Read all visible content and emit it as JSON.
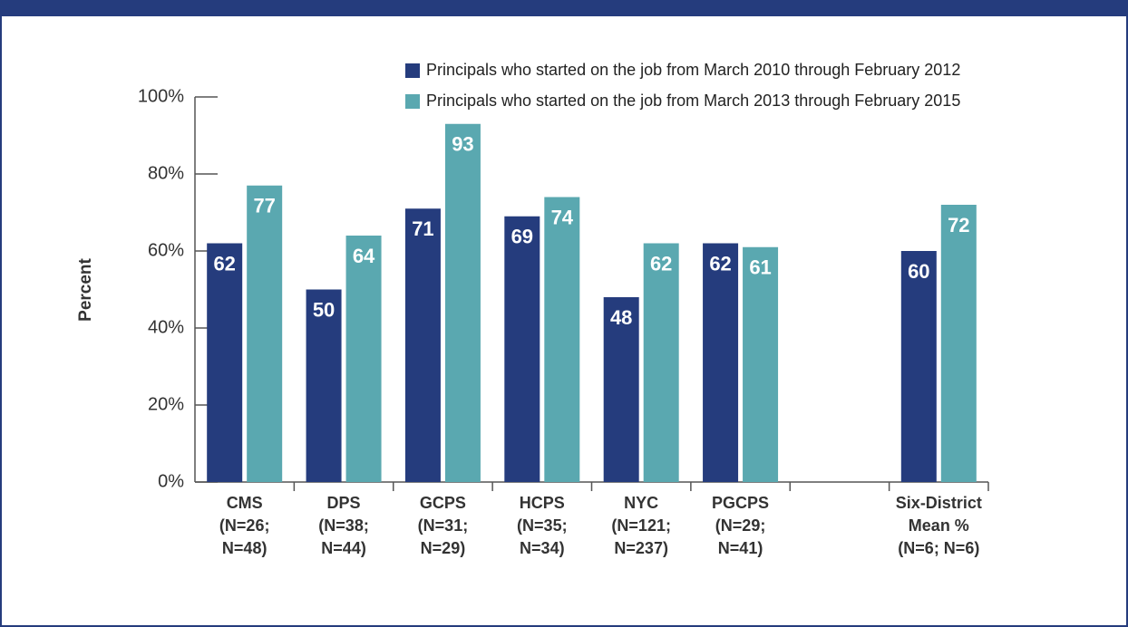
{
  "chart_data": {
    "type": "bar",
    "y_label": "Percent",
    "categories": [
      [
        "CMS",
        "(N=26;",
        "N=48)"
      ],
      [
        "DPS",
        "(N=38;",
        "N=44)"
      ],
      [
        "GCPS",
        "(N=31;",
        "N=29)"
      ],
      [
        "HCPS",
        "(N=35;",
        "N=34)"
      ],
      [
        "NYC",
        "(N=121;",
        "N=237)"
      ],
      [
        "PGCPS",
        "(N=29;",
        "N=41)"
      ],
      null,
      [
        "Six-District",
        "Mean %",
        "(N=6; N=6)"
      ]
    ],
    "series": [
      {
        "name": "Principals who started on the job from March 2010 through February 2012",
        "color": "#253c7d",
        "values": [
          62,
          50,
          71,
          69,
          48,
          62,
          null,
          60
        ]
      },
      {
        "name": "Principals who started on the job from March 2013 through February 2015",
        "color": "#5aa8b0",
        "values": [
          77,
          64,
          93,
          74,
          62,
          61,
          null,
          72
        ]
      }
    ],
    "ylim": [
      0,
      100
    ],
    "yticks": [
      {
        "value": 0,
        "label": "0%"
      },
      {
        "value": 20,
        "label": "20%"
      },
      {
        "value": 40,
        "label": "40%"
      },
      {
        "value": 60,
        "label": "60%"
      },
      {
        "value": 80,
        "label": "80%"
      },
      {
        "value": 100,
        "label": "100%"
      }
    ]
  }
}
